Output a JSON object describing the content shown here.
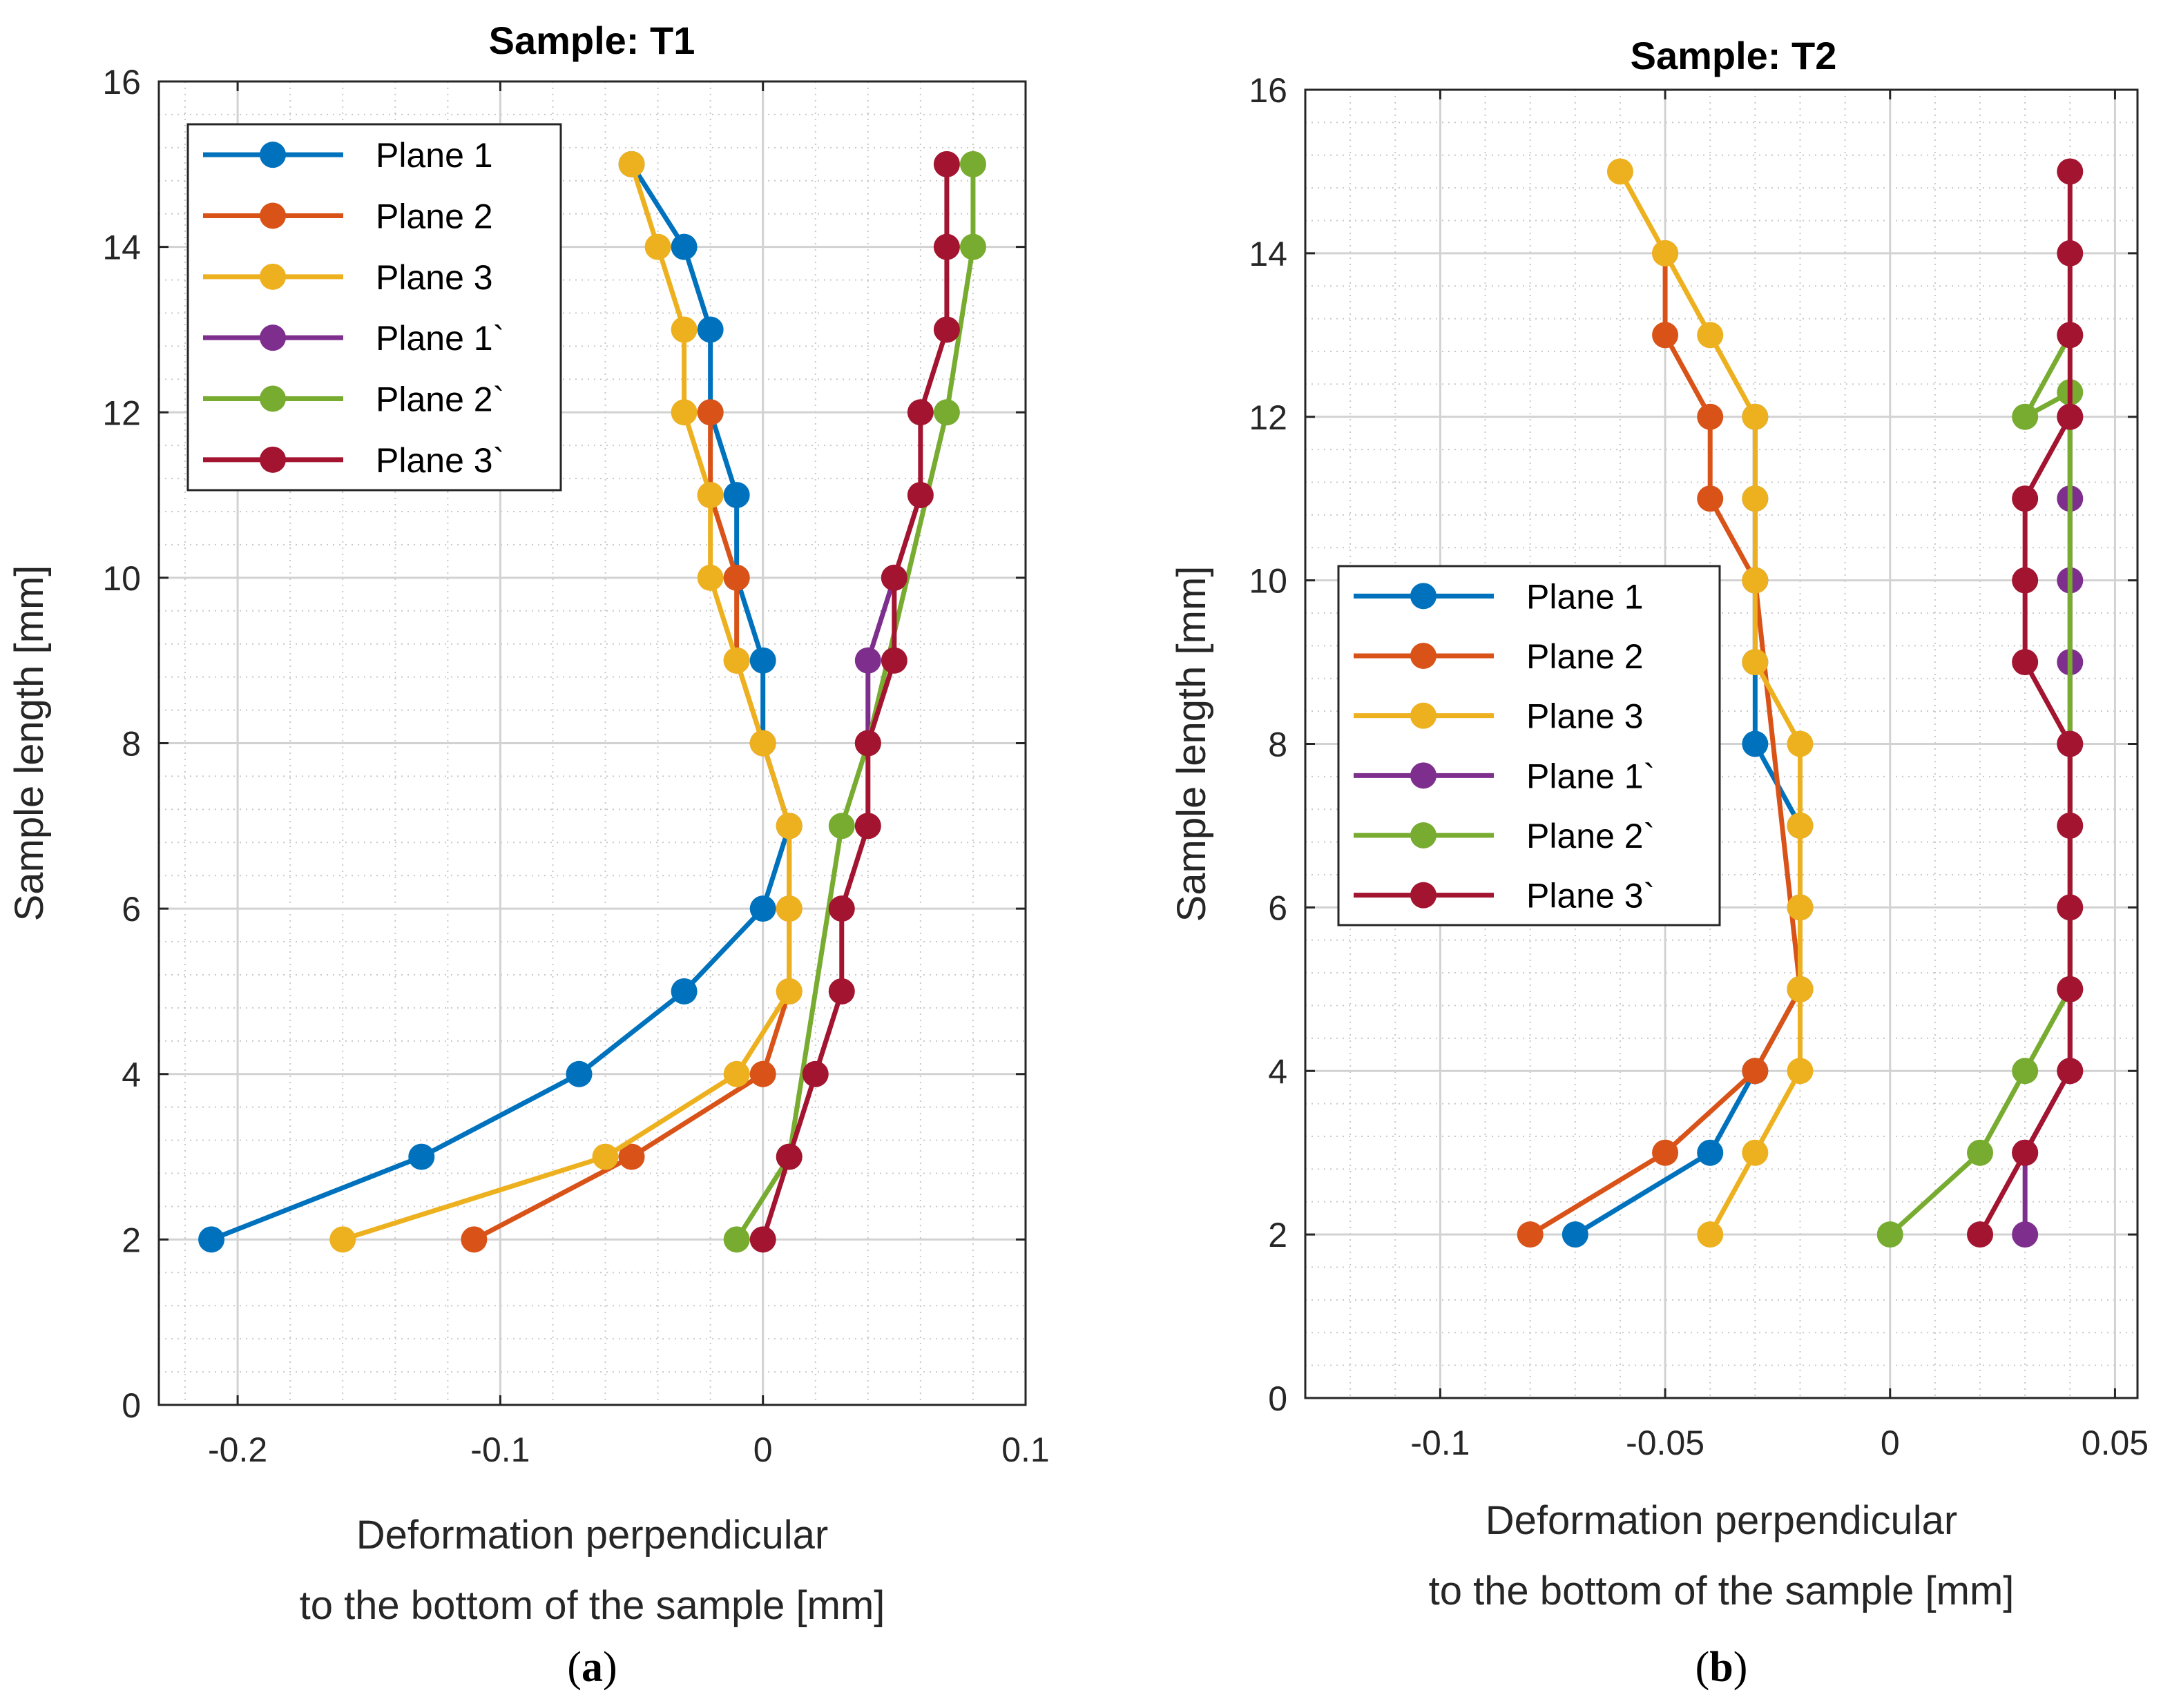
{
  "chart_data": [
    {
      "type": "line",
      "panel_label": "a",
      "title": "Sample: T1",
      "xlabel_lines": [
        "Deformation perpendicular",
        "to the bottom of the sample [mm]"
      ],
      "ylabel": "Sample length [mm]",
      "xlim": [
        -0.23,
        0.1
      ],
      "ylim": [
        0,
        16
      ],
      "xticks": [
        -0.2,
        -0.1,
        0,
        0.1
      ],
      "xtick_labels": [
        "-0.2",
        "-0.1",
        "0",
        "0.1"
      ],
      "yticks": [
        0,
        2,
        4,
        6,
        8,
        10,
        12,
        14,
        16
      ],
      "ytick_labels": [
        "0",
        "2",
        "4",
        "6",
        "8",
        "10",
        "12",
        "14",
        "16"
      ],
      "grid": true,
      "minor_grid": true,
      "legend_position": "top-left",
      "series": [
        {
          "name": "Plane 1",
          "color": "#0072BD",
          "points": [
            [
              -0.21,
              2
            ],
            [
              -0.13,
              3
            ],
            [
              -0.07,
              4
            ],
            [
              -0.03,
              5
            ],
            [
              0,
              6
            ],
            [
              0.01,
              7
            ],
            [
              0,
              8
            ],
            [
              0,
              9
            ],
            [
              -0.01,
              10
            ],
            [
              -0.01,
              11
            ],
            [
              -0.02,
              12
            ],
            [
              -0.02,
              13
            ],
            [
              -0.03,
              14
            ],
            [
              -0.05,
              15
            ]
          ]
        },
        {
          "name": "Plane 2",
          "color": "#D95319",
          "points": [
            [
              -0.11,
              2
            ],
            [
              -0.05,
              3
            ],
            [
              0,
              4
            ],
            [
              0.01,
              5
            ],
            [
              0.01,
              6
            ],
            [
              0.01,
              7
            ],
            [
              0,
              8
            ],
            [
              -0.01,
              9
            ],
            [
              -0.01,
              10
            ],
            [
              -0.02,
              11
            ],
            [
              -0.02,
              12
            ]
          ]
        },
        {
          "name": "Plane 3",
          "color": "#EDB120",
          "points": [
            [
              -0.16,
              2
            ],
            [
              -0.06,
              3
            ],
            [
              -0.01,
              4
            ],
            [
              0.01,
              5
            ],
            [
              0.01,
              6
            ],
            [
              0.01,
              7
            ],
            [
              0,
              8
            ],
            [
              -0.01,
              9
            ],
            [
              -0.02,
              10
            ],
            [
              -0.02,
              11
            ],
            [
              -0.03,
              12
            ],
            [
              -0.03,
              13
            ],
            [
              -0.04,
              14
            ],
            [
              -0.05,
              15
            ]
          ]
        },
        {
          "name": "Plane 1`",
          "color": "#7E2F8E",
          "points": [
            [
              0.04,
              8
            ],
            [
              0.04,
              9
            ],
            [
              0.05,
              10
            ]
          ]
        },
        {
          "name": "Plane 2`",
          "color": "#77AC30",
          "points": [
            [
              -0.01,
              2
            ],
            [
              0.01,
              3
            ],
            [
              0.03,
              7
            ],
            [
              0.04,
              8
            ],
            [
              0.07,
              12
            ],
            [
              0.08,
              14
            ],
            [
              0.08,
              15
            ]
          ]
        },
        {
          "name": "Plane 3`",
          "color": "#A2142F",
          "points": [
            [
              0,
              2
            ],
            [
              0.01,
              3
            ],
            [
              0.02,
              4
            ],
            [
              0.03,
              5
            ],
            [
              0.03,
              6
            ],
            [
              0.04,
              7
            ],
            [
              0.04,
              8
            ],
            [
              0.05,
              9
            ],
            [
              0.05,
              10
            ],
            [
              0.06,
              11
            ],
            [
              0.06,
              12
            ],
            [
              0.07,
              13
            ],
            [
              0.07,
              14
            ],
            [
              0.07,
              15
            ]
          ]
        }
      ]
    },
    {
      "type": "line",
      "panel_label": "b",
      "title": "Sample: T2",
      "xlabel_lines": [
        "Deformation perpendicular",
        "to the bottom of the sample [mm]"
      ],
      "ylabel": "Sample length [mm]",
      "xlim": [
        -0.13,
        0.055
      ],
      "ylim": [
        0,
        16
      ],
      "xticks": [
        -0.1,
        -0.05,
        0,
        0.05
      ],
      "xtick_labels": [
        "-0.1",
        "-0.05",
        "0",
        "0.05"
      ],
      "yticks": [
        0,
        2,
        4,
        6,
        8,
        10,
        12,
        14,
        16
      ],
      "ytick_labels": [
        "0",
        "2",
        "4",
        "6",
        "8",
        "10",
        "12",
        "14",
        "16"
      ],
      "grid": true,
      "minor_grid": true,
      "legend_position": "center-left",
      "series": [
        {
          "name": "Plane 1",
          "color": "#0072BD",
          "points": [
            [
              -0.07,
              2
            ],
            [
              -0.04,
              3
            ],
            [
              -0.03,
              4
            ],
            [
              -0.02,
              5
            ],
            [
              -0.02,
              6
            ],
            [
              -0.02,
              7
            ],
            [
              -0.03,
              8
            ],
            [
              -0.03,
              9
            ],
            [
              -0.03,
              10
            ],
            [
              -0.03,
              11
            ],
            [
              -0.03,
              12
            ]
          ]
        },
        {
          "name": "Plane 2",
          "color": "#D95319",
          "points": [
            [
              -0.08,
              2
            ],
            [
              -0.05,
              3
            ],
            [
              -0.03,
              4
            ],
            [
              -0.02,
              5
            ],
            [
              -0.03,
              10
            ],
            [
              -0.04,
              11
            ],
            [
              -0.04,
              12
            ],
            [
              -0.05,
              13
            ],
            [
              -0.05,
              14
            ]
          ]
        },
        {
          "name": "Plane 3",
          "color": "#EDB120",
          "points": [
            [
              -0.04,
              2
            ],
            [
              -0.03,
              3
            ],
            [
              -0.02,
              4
            ],
            [
              -0.02,
              5
            ],
            [
              -0.02,
              6
            ],
            [
              -0.02,
              7
            ],
            [
              -0.02,
              8
            ],
            [
              -0.03,
              9
            ],
            [
              -0.03,
              10
            ],
            [
              -0.03,
              11
            ],
            [
              -0.03,
              12
            ],
            [
              -0.04,
              13
            ],
            [
              -0.05,
              14
            ],
            [
              -0.06,
              15
            ]
          ]
        },
        {
          "name": "Plane 1`",
          "color": "#7E2F8E",
          "points": [
            [
              0.03,
              2
            ],
            [
              0.03,
              3
            ],
            [
              0.04,
              4
            ],
            [
              0.04,
              8
            ],
            [
              0.04,
              9
            ],
            [
              0.04,
              10
            ],
            [
              0.04,
              11
            ],
            [
              0.04,
              12
            ]
          ]
        },
        {
          "name": "Plane 2`",
          "color": "#77AC30",
          "points": [
            [
              0,
              2
            ],
            [
              0.02,
              3
            ],
            [
              0.03,
              4
            ],
            [
              0.04,
              5
            ],
            [
              0.04,
              12.3
            ],
            [
              0.03,
              12
            ],
            [
              0.04,
              13
            ]
          ]
        },
        {
          "name": "Plane 3`",
          "color": "#A2142F",
          "points": [
            [
              0.02,
              2
            ],
            [
              0.03,
              3
            ],
            [
              0.04,
              4
            ],
            [
              0.04,
              5
            ],
            [
              0.04,
              6
            ],
            [
              0.04,
              7
            ],
            [
              0.04,
              8
            ],
            [
              0.03,
              9
            ],
            [
              0.03,
              10
            ],
            [
              0.03,
              11
            ],
            [
              0.04,
              12
            ],
            [
              0.04,
              13
            ],
            [
              0.04,
              14
            ],
            [
              0.04,
              15
            ]
          ]
        }
      ]
    }
  ]
}
